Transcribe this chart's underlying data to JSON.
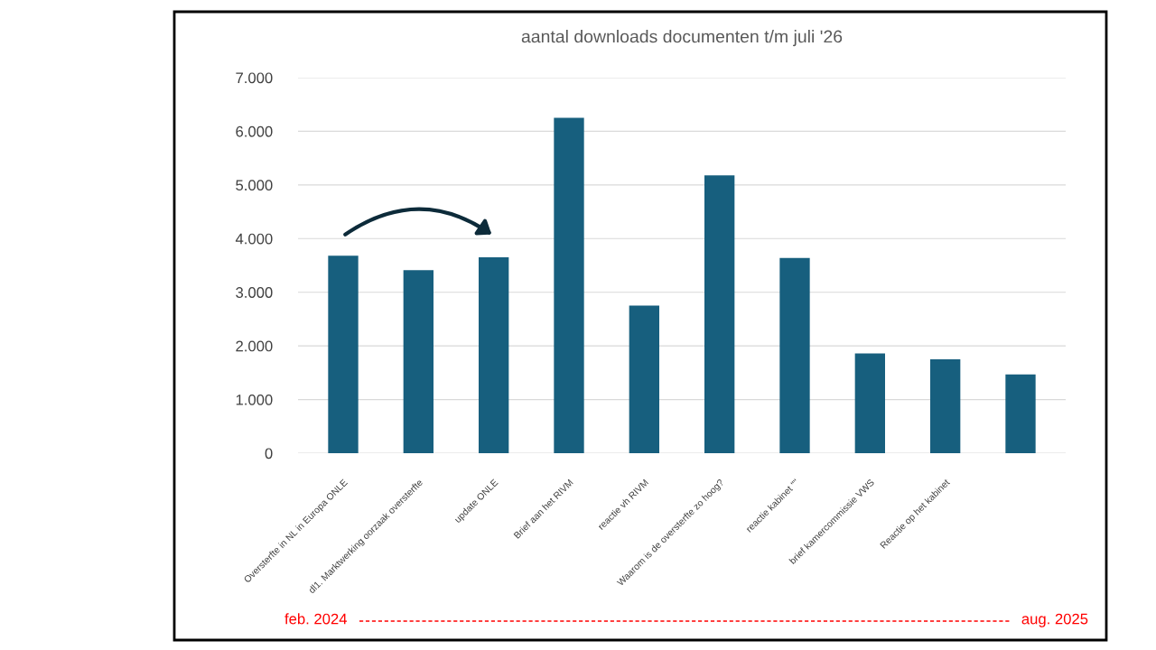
{
  "chart_data": {
    "type": "bar",
    "title": "aantal downloads documenten t/m juli '26",
    "categories": [
      "Oversterfte in NL in Europa ONLE",
      "dl1. Marktwerking oorzaak oversterfte",
      "update ONLE",
      "Brief aan het RIVM",
      "reactie vh RIVM",
      "Waarom is de oversterfte zo hoog?",
      "reactie kabinet \"\"",
      "brief kamercommissie VWS",
      "Reactie op het kabinet",
      null
    ],
    "values": [
      3680,
      3410,
      3650,
      6250,
      2750,
      5180,
      3640,
      1860,
      1750,
      1470
    ],
    "color": "#175f7e",
    "ylim": [
      0,
      7000
    ],
    "yticks": [
      {
        "value": 0,
        "label": "0"
      },
      {
        "value": 1000,
        "label": "1.000"
      },
      {
        "value": 2000,
        "label": "2.000"
      },
      {
        "value": 3000,
        "label": "3.000"
      },
      {
        "value": 4000,
        "label": "4.000"
      },
      {
        "value": 5000,
        "label": "5.000"
      },
      {
        "value": 6000,
        "label": "6.000"
      },
      {
        "value": 7000,
        "label": "7.000"
      }
    ],
    "grid": "y",
    "annotations": [
      "feb. 2024",
      "aug. 2025"
    ]
  }
}
